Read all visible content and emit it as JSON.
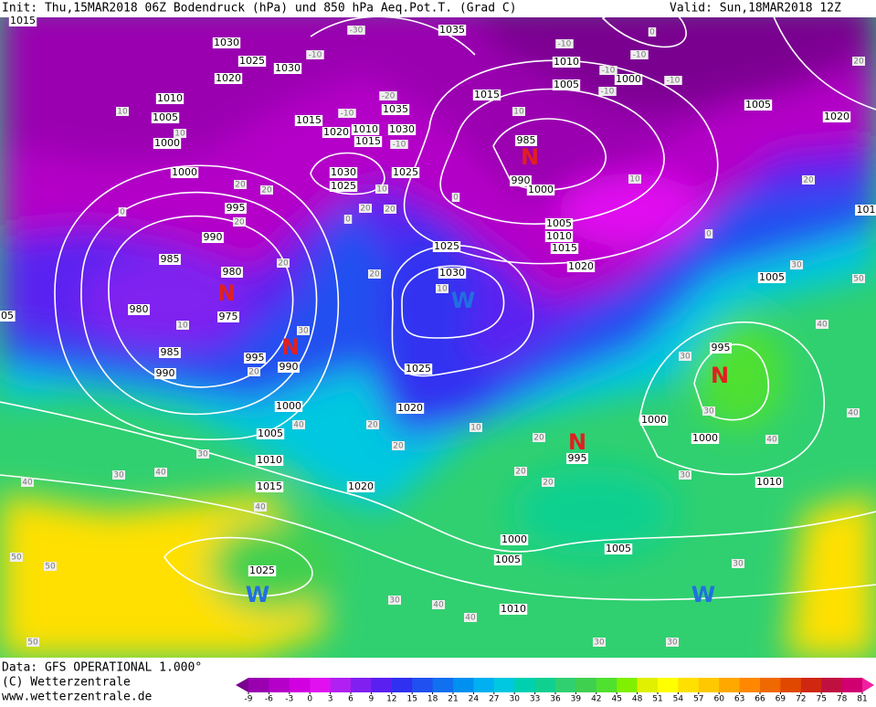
{
  "header": {
    "left": "Init: Thu,15MAR2018 06Z Bodendruck (hPa) und 850 hPa Aeq.Pot.T. (Grad C)",
    "right": "Valid: Sun,18MAR2018 12Z"
  },
  "footer": {
    "lines": [
      "Data: GFS OPERATIONAL 1.000°",
      "(C) Wetterzentrale",
      "www.wetterzentrale.de"
    ]
  },
  "isobar_labels": [
    "1015",
    "1030",
    "1025",
    "1020",
    "1030",
    "1035",
    "1010",
    "1005",
    "1000",
    "1015",
    "1035",
    "1030",
    "1010",
    "1020",
    "1015",
    "1015",
    "1010",
    "1005",
    "1000",
    "1000",
    "1030",
    "1025",
    "1025",
    "985",
    "990",
    "1000",
    "1005",
    "1010",
    "1015",
    "1020",
    "1025",
    "1030",
    "995",
    "990",
    "985",
    "980",
    "980",
    "975",
    "995",
    "990",
    "985",
    "990",
    "1025",
    "1020",
    "1000",
    "1005",
    "1010",
    "1015",
    "1020",
    "1000",
    "1005",
    "1005",
    "1010",
    "1025",
    "1005",
    "995",
    "1000",
    "1000",
    "995",
    "1010",
    "1005",
    "1020",
    "05",
    "101"
  ],
  "pressure_centers": [
    "N",
    "N",
    "N",
    "N",
    "N",
    "W",
    "W",
    "W"
  ],
  "temperature_labels": [
    "-30",
    "-10",
    "-10",
    "-10",
    "-10",
    "-10",
    "-10",
    "-20",
    "-10",
    "-10",
    "0",
    "20",
    "20",
    "10",
    "0",
    "10",
    "0",
    "20",
    "20",
    "20",
    "0",
    "20",
    "20",
    "10",
    "20",
    "20",
    "10",
    "20",
    "30",
    "40",
    "30",
    "40",
    "30",
    "40",
    "50",
    "50",
    "50",
    "20",
    "20",
    "10",
    "20",
    "20",
    "20",
    "30",
    "40",
    "40",
    "30",
    "30",
    "30",
    "30",
    "40",
    "30",
    "50",
    "40",
    "30",
    "30",
    "40",
    "40",
    "10",
    "0",
    "10",
    "10"
  ],
  "colorbar": {
    "ticks": [
      -9,
      -6,
      -3,
      0,
      3,
      6,
      9,
      12,
      15,
      18,
      21,
      24,
      27,
      30,
      33,
      36,
      39,
      42,
      45,
      48,
      51,
      54,
      57,
      60,
      63,
      66,
      69,
      72,
      75,
      78,
      81
    ],
    "colors": [
      "#7a0090",
      "#9a00b0",
      "#b400c8",
      "#d000e0",
      "#e010f0",
      "#b020f0",
      "#8020f0",
      "#5a20f0",
      "#3030f0",
      "#2050f0",
      "#1070f0",
      "#0090f0",
      "#00b0f0",
      "#00c8e0",
      "#00d0b0",
      "#10d090",
      "#30d070",
      "#40d050",
      "#50e030",
      "#80f000",
      "#e0f000",
      "#ffff00",
      "#ffe000",
      "#ffc800",
      "#ffa800",
      "#ff8800",
      "#f06800",
      "#e04800",
      "#d02810",
      "#c01040",
      "#d00070",
      "#f020a0"
    ]
  }
}
